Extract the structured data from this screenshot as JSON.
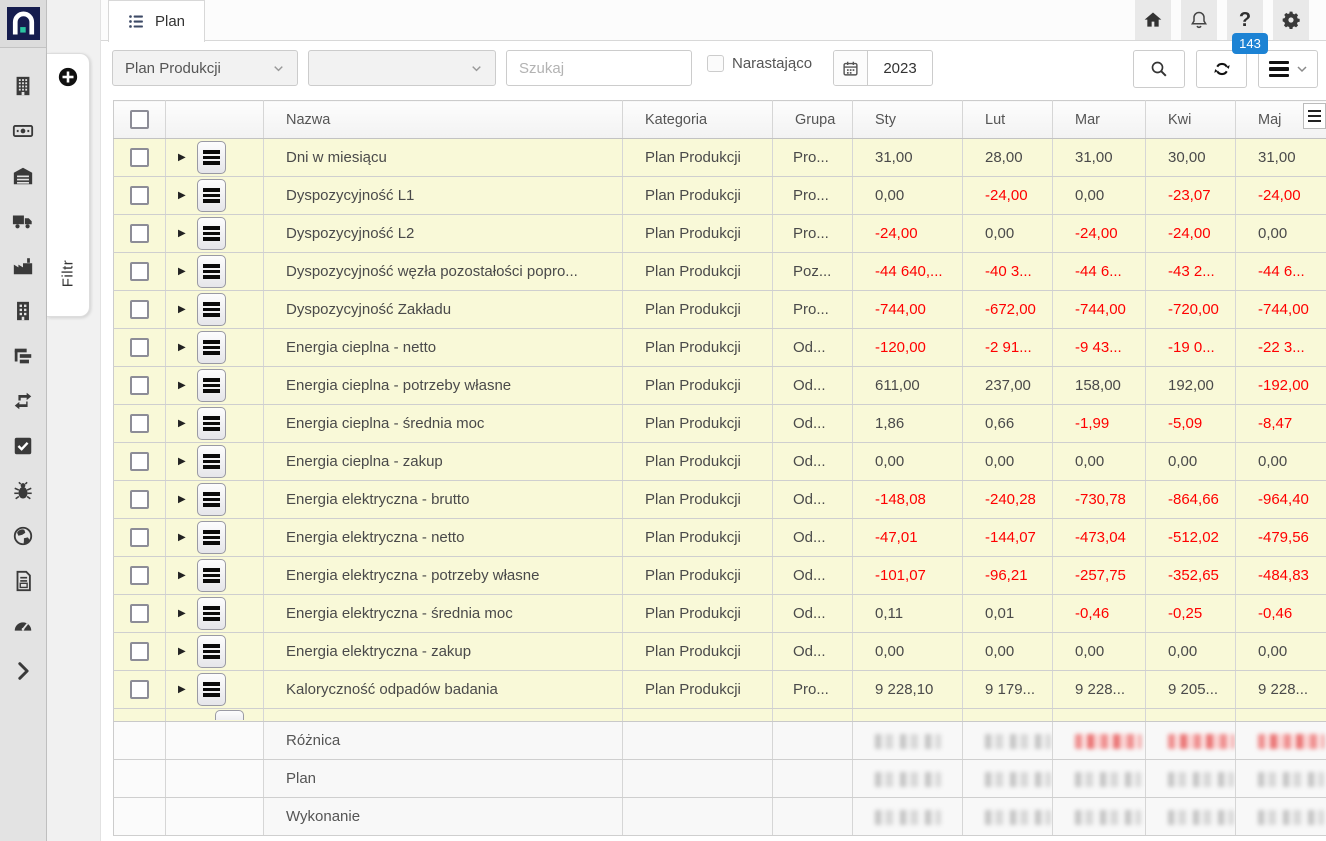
{
  "brand": {
    "logo_navy": "#161d4e",
    "logo_teal": "#2bc4a0"
  },
  "tabbar": {
    "active_tab_label": "Plan",
    "tab_icon": "list-icon",
    "help_badge_count": "143",
    "action_icons": [
      "home-icon",
      "bell-icon",
      "help-icon",
      "gear-icon"
    ]
  },
  "toolbar": {
    "dataset_select_value": "Plan Produkcji",
    "secondary_select_value": "",
    "search_placeholder": "Szukaj",
    "cumulative_checkbox_label": "Narastająco",
    "cumulative_checked": false,
    "year_value": "2023",
    "action_icons": [
      "search-icon",
      "refresh-icon",
      "menu-icon",
      "chevron-down-icon"
    ]
  },
  "sidebar": {
    "icons": [
      "building-grid",
      "banknote",
      "warehouse",
      "truck",
      "industry",
      "office-building",
      "sitemap",
      "repeat",
      "check-square",
      "bug",
      "globe",
      "invoice",
      "dashboard",
      "expand-chevron"
    ]
  },
  "filter_panel": {
    "label": "Filtr",
    "icon": "plus-circle-icon"
  },
  "table": {
    "columns": {
      "name": "Nazwa",
      "category": "Kategoria",
      "group": "Grupa"
    },
    "month_columns": [
      "Sty",
      "Lut",
      "Mar",
      "Kwi",
      "Maj"
    ],
    "negative_color": "#ff0000",
    "row_background": "#f9f9d8",
    "rows": [
      {
        "name": "Dni w miesiącu",
        "category": "Plan Produkcji",
        "group": "Pro...",
        "values": [
          "31,00",
          "28,00",
          "31,00",
          "30,00",
          "31,00"
        ]
      },
      {
        "name": "Dyspozycyjność L1",
        "category": "Plan Produkcji",
        "group": "Pro...",
        "values": [
          "0,00",
          "-24,00",
          "0,00",
          "-23,07",
          "-24,00"
        ]
      },
      {
        "name": "Dyspozycyjność L2",
        "category": "Plan Produkcji",
        "group": "Pro...",
        "values": [
          "-24,00",
          "0,00",
          "-24,00",
          "-24,00",
          "0,00"
        ]
      },
      {
        "name": "Dyspozycyjność węzła pozostałości popro...",
        "category": "Plan Produkcji",
        "group": "Poz...",
        "values": [
          "-44 640,...",
          "-40 3...",
          "-44 6...",
          "-43 2...",
          "-44 6..."
        ]
      },
      {
        "name": "Dyspozycyjność Zakładu",
        "category": "Plan Produkcji",
        "group": "Pro...",
        "values": [
          "-744,00",
          "-672,00",
          "-744,00",
          "-720,00",
          "-744,00"
        ]
      },
      {
        "name": "Energia cieplna - netto",
        "category": "Plan Produkcji",
        "group": "Od...",
        "values": [
          "-120,00",
          "-2 91...",
          "-9 43...",
          "-19 0...",
          "-22 3..."
        ]
      },
      {
        "name": "Energia cieplna - potrzeby własne",
        "category": "Plan Produkcji",
        "group": "Od...",
        "values": [
          "611,00",
          "237,00",
          "158,00",
          "192,00",
          "-192,00"
        ]
      },
      {
        "name": "Energia cieplna - średnia moc",
        "category": "Plan Produkcji",
        "group": "Od...",
        "values": [
          "1,86",
          "0,66",
          "-1,99",
          "-5,09",
          "-8,47"
        ]
      },
      {
        "name": "Energia cieplna - zakup",
        "category": "Plan Produkcji",
        "group": "Od...",
        "values": [
          "0,00",
          "0,00",
          "0,00",
          "0,00",
          "0,00"
        ]
      },
      {
        "name": "Energia elektryczna - brutto",
        "category": "Plan Produkcji",
        "group": "Od...",
        "values": [
          "-148,08",
          "-240,28",
          "-730,78",
          "-864,66",
          "-964,40"
        ]
      },
      {
        "name": "Energia elektryczna - netto",
        "category": "Plan Produkcji",
        "group": "Od...",
        "values": [
          "-47,01",
          "-144,07",
          "-473,04",
          "-512,02",
          "-479,56"
        ]
      },
      {
        "name": "Energia elektryczna - potrzeby własne",
        "category": "Plan Produkcji",
        "group": "Od...",
        "values": [
          "-101,07",
          "-96,21",
          "-257,75",
          "-352,65",
          "-484,83"
        ]
      },
      {
        "name": "Energia elektryczna - średnia moc",
        "category": "Plan Produkcji",
        "group": "Od...",
        "values": [
          "0,11",
          "0,01",
          "-0,46",
          "-0,25",
          "-0,46"
        ]
      },
      {
        "name": "Energia elektryczna - zakup",
        "category": "Plan Produkcji",
        "group": "Od...",
        "values": [
          "0,00",
          "0,00",
          "0,00",
          "0,00",
          "0,00"
        ]
      },
      {
        "name": "Kaloryczność odpadów badania",
        "category": "Plan Produkcji",
        "group": "Pro...",
        "values": [
          "9 228,10",
          "9 179...",
          "9 228...",
          "9 205...",
          "9 228..."
        ]
      }
    ],
    "summary_rows": [
      {
        "label": "Różnica",
        "blurs": [
          "gray",
          "gray",
          "red",
          "red",
          "red"
        ],
        "suffix": ",",
        "suffix_red": true
      },
      {
        "label": "Plan",
        "blurs": [
          "gray",
          "gray",
          "gray",
          "gray",
          "gray"
        ],
        "suffix": "..",
        "suffix_red": false
      },
      {
        "label": "Wykonanie",
        "blurs": [
          "gray",
          "gray",
          "gray",
          "gray",
          "gray"
        ],
        "suffix": "..",
        "suffix_red": false
      }
    ]
  }
}
